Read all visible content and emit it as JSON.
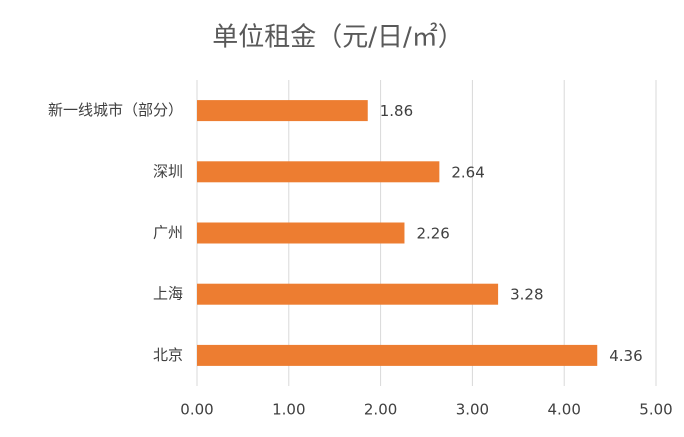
{
  "chart_data": {
    "type": "bar",
    "title": "单位租金（元/日/㎡）",
    "categories": [
      "新一线城市（部分）",
      "深圳",
      "广州",
      "上海",
      "北京"
    ],
    "values": [
      1.86,
      2.64,
      2.26,
      3.28,
      4.36
    ],
    "color": "#ed7d31",
    "xlim": [
      0,
      5
    ],
    "xticks": [
      {
        "value": 0,
        "label": "0.00"
      },
      {
        "value": 1,
        "label": "1.00"
      },
      {
        "value": 2,
        "label": "2.00"
      },
      {
        "value": 3,
        "label": "3.00"
      },
      {
        "value": 4,
        "label": "4.00"
      },
      {
        "value": 5,
        "label": "5.00"
      }
    ],
    "grid": true
  }
}
